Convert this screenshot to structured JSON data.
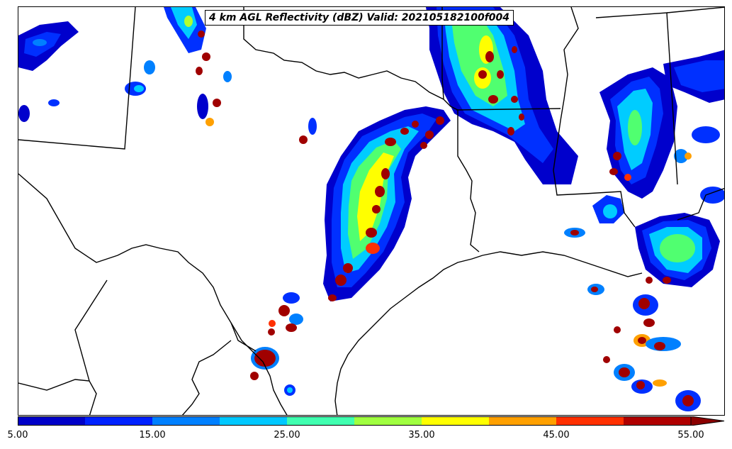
{
  "title": "4 km AGL Reflectivity (dBZ) Valid: 202105182100f004",
  "colorbar": {
    "colors": [
      "#0000c8",
      "#0022ff",
      "#0080ff",
      "#00c8ff",
      "#00e8c0",
      "#40ff80",
      "#a0ff40",
      "#ffff00",
      "#ffa000",
      "#ff5000",
      "#ff2000",
      "#c00000",
      "#8b0000"
    ],
    "tick_labels": [
      "5.00",
      "15.00",
      "25.00",
      "35.00",
      "45.00",
      "55.00"
    ],
    "extend": "max"
  },
  "palette": {
    "dark_blue": "#0000cc",
    "blue": "#0030ff",
    "azure": "#0080ff",
    "cyan": "#00ccff",
    "aqua": "#00f0c0",
    "green": "#50ff70",
    "yellow_green": "#b0ff30",
    "yellow": "#ffff00",
    "orange": "#ffa000",
    "red": "#ff3000",
    "dark_red": "#a00000"
  }
}
